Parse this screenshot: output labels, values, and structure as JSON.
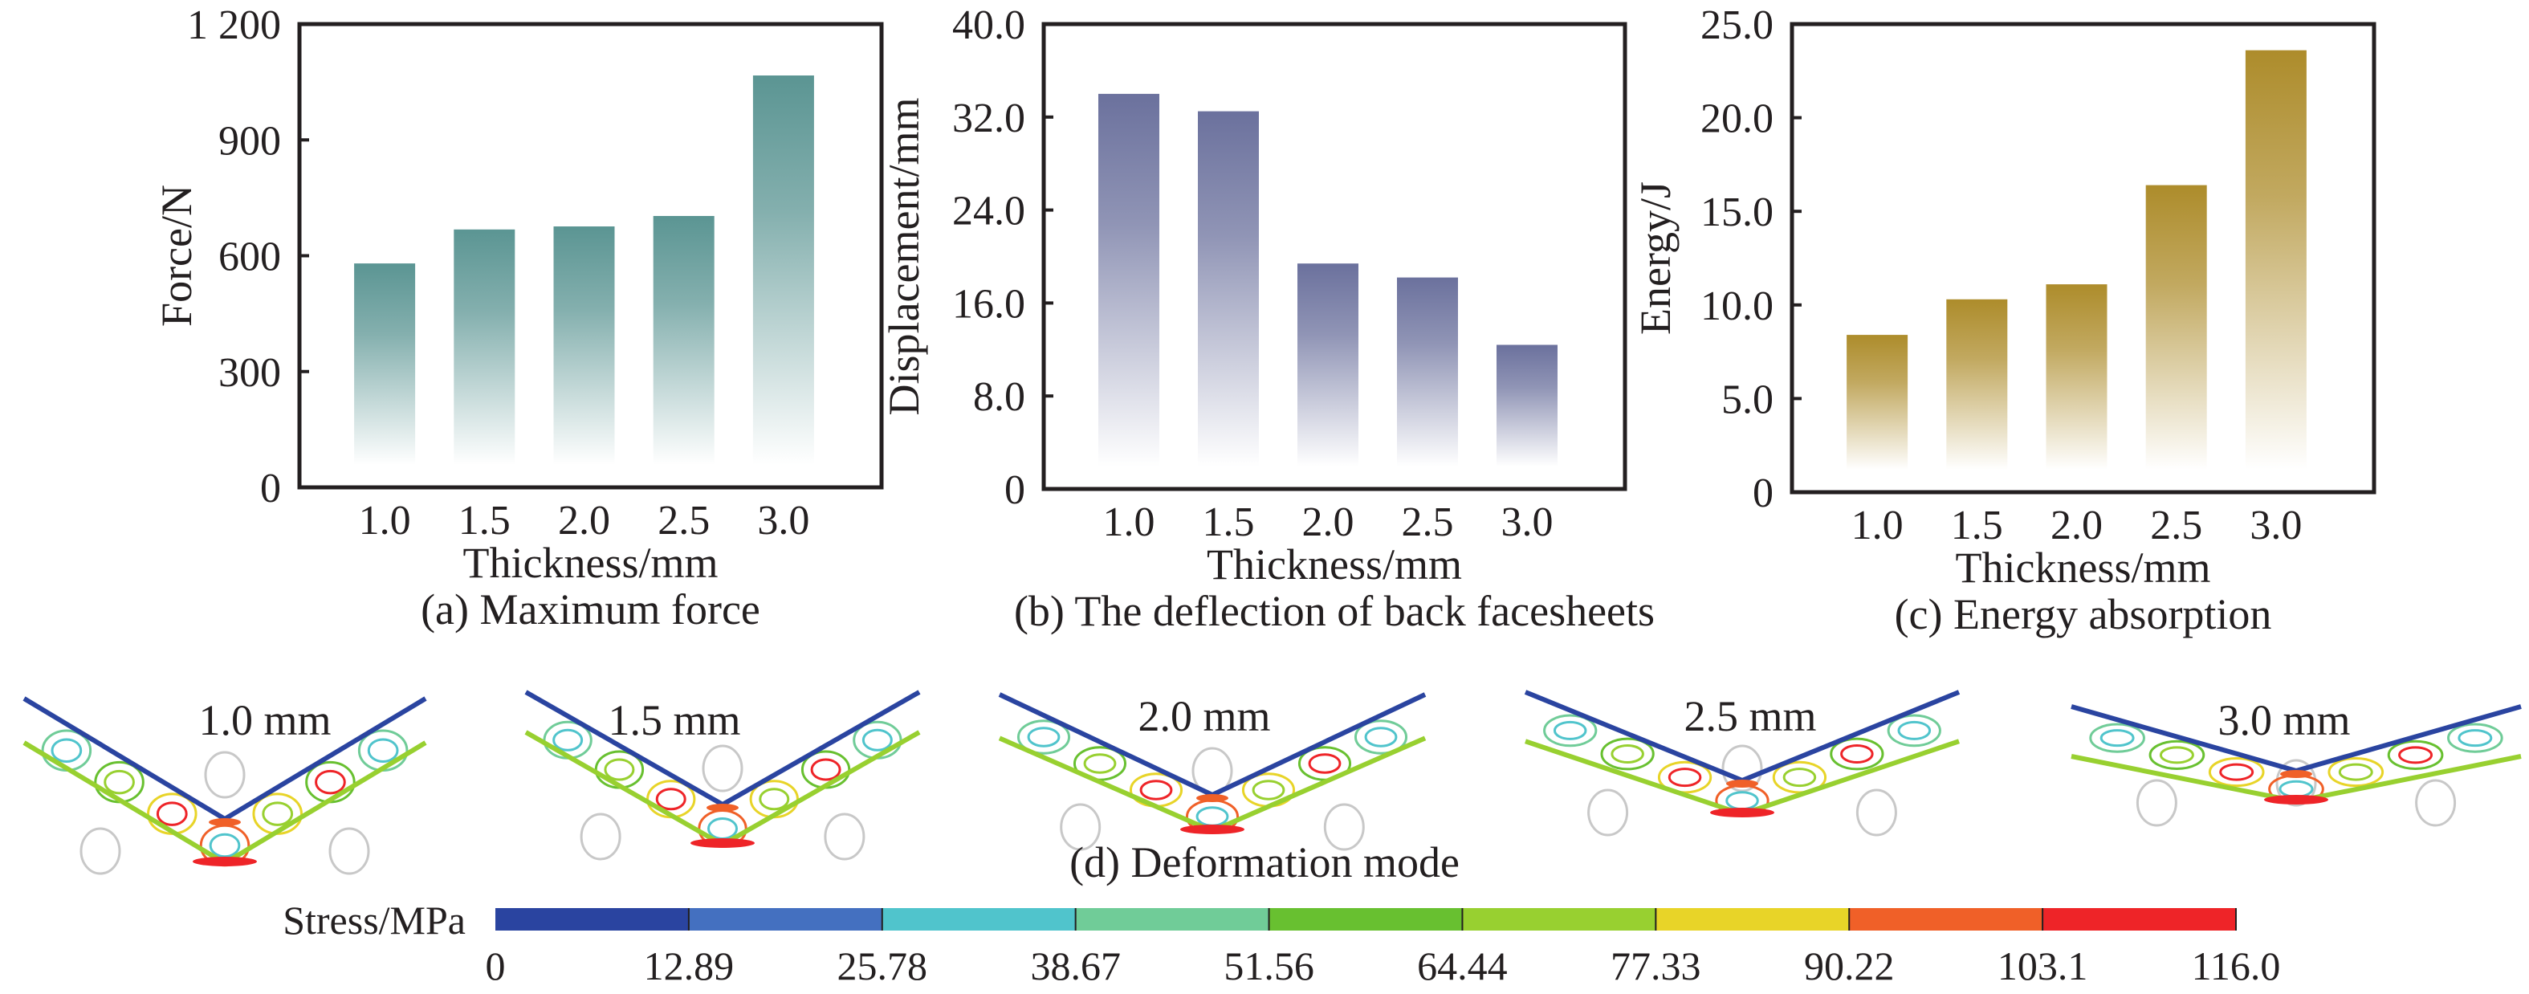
{
  "chart_data": [
    {
      "id": "a",
      "type": "bar",
      "title": "(a) Maximum force",
      "xlabel": "Thickness/mm",
      "ylabel": "Force/N",
      "categories": [
        "1.0",
        "1.5",
        "2.0",
        "2.5",
        "3.0"
      ],
      "values": [
        580,
        668,
        676,
        703,
        1067
      ],
      "ylim": [
        0,
        1200
      ],
      "yticks": [
        0,
        300,
        600,
        900,
        1200
      ],
      "ytick_labels": [
        "0",
        "300",
        "600",
        "900",
        "1 200"
      ],
      "color": "#5b9593",
      "grid": false
    },
    {
      "id": "b",
      "type": "bar",
      "title": "(b) The deflection of back facesheets",
      "xlabel": "Thickness/mm",
      "ylabel": "Displacement/mm",
      "categories": [
        "1.0",
        "1.5",
        "2.0",
        "2.5",
        "3.0"
      ],
      "values": [
        34.0,
        32.5,
        19.4,
        18.2,
        12.4
      ],
      "ylim": [
        0,
        40
      ],
      "yticks": [
        0,
        8,
        16,
        24,
        32,
        40
      ],
      "ytick_labels": [
        "0",
        "8.0",
        "16.0",
        "24.0",
        "32.0",
        "40.0"
      ],
      "color": "#6b719d",
      "grid": false
    },
    {
      "id": "c",
      "type": "bar",
      "title": "(c) Energy absorption",
      "xlabel": "Thickness/mm",
      "ylabel": "Energy/J",
      "categories": [
        "1.0",
        "1.5",
        "2.0",
        "2.5",
        "3.0"
      ],
      "values": [
        8.4,
        10.3,
        11.1,
        16.4,
        23.6
      ],
      "ylim": [
        0,
        25
      ],
      "yticks": [
        0,
        5,
        10,
        15,
        20,
        25
      ],
      "ytick_labels": [
        "0",
        "5.0",
        "10.0",
        "15.0",
        "20.0",
        "25.0"
      ],
      "color": "#ad8c2b",
      "grid": false
    }
  ],
  "deformation": {
    "title": "(d) Deformation mode",
    "panels": [
      {
        "label": "1.0 mm"
      },
      {
        "label": "1.5 mm"
      },
      {
        "label": "2.0 mm"
      },
      {
        "label": "2.5 mm"
      },
      {
        "label": "3.0 mm"
      }
    ]
  },
  "colorbar": {
    "label": "Stress/MPa",
    "ticks": [
      "0",
      "12.89",
      "25.78",
      "38.67",
      "51.56",
      "64.44",
      "77.33",
      "90.22",
      "103.1",
      "116.0"
    ],
    "colors": [
      "#2a44a0",
      "#4470c0",
      "#50c4cc",
      "#70cc98",
      "#68c030",
      "#98d030",
      "#e8d428",
      "#f06028",
      "#ee2428"
    ]
  }
}
